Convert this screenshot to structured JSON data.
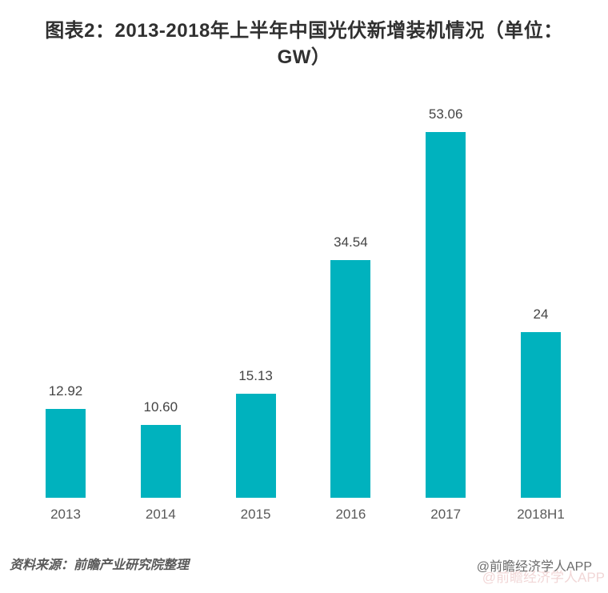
{
  "title": {
    "line1": "图表2：2013-2018年上半年中国光伏新增装机情况（单位：",
    "line2": "GW）"
  },
  "chart_data": {
    "type": "bar",
    "title": "图表2：2013-2018年上半年中国光伏新增装机情况（单位：GW）",
    "unit": "GW",
    "categories": [
      "2013",
      "2014",
      "2015",
      "2016",
      "2017",
      "2018H1"
    ],
    "values": [
      12.92,
      10.6,
      15.13,
      34.54,
      53.06,
      24
    ],
    "value_labels": [
      "12.92",
      "10.60",
      "15.13",
      "34.54",
      "53.06",
      "24"
    ],
    "xlabel": "",
    "ylabel": "",
    "ylim": [
      0,
      55
    ],
    "grid": false,
    "axis_lines": false,
    "legend": null,
    "bar_color": "#00b2be",
    "value_label_color": "#444444",
    "axis_label_color": "#595959"
  },
  "footer": {
    "source": "资料来源：前瞻产业研究院整理",
    "credit": "@前瞻经济学人APP"
  },
  "colors": {
    "background": "#ffffff",
    "title_text": "#303030",
    "bar": "#00b2be",
    "watermark": "#d98c8c"
  }
}
